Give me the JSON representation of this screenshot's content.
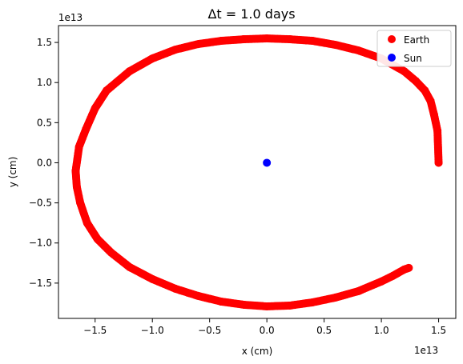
{
  "chart_data": {
    "type": "scatter",
    "title": "Δt = 1.0 days",
    "xlabel": "x (cm)",
    "ylabel": "y (cm)",
    "x_offset_label": "1e13",
    "y_offset_label": "1e13",
    "xlim": [
      -1.82,
      1.65
    ],
    "ylim": [
      -1.94,
      1.71
    ],
    "xticks": [
      -1.5,
      -1.0,
      -0.5,
      0.0,
      0.5,
      1.0,
      1.5
    ],
    "xtick_labels": [
      "−1.5",
      "−1.0",
      "−0.5",
      "0.0",
      "0.5",
      "1.0",
      "1.5"
    ],
    "yticks": [
      -1.5,
      -1.0,
      -0.5,
      0.0,
      0.5,
      1.0,
      1.5
    ],
    "ytick_labels": [
      "−1.5",
      "−1.0",
      "−0.5",
      "0.0",
      "0.5",
      "1.0",
      "1.5"
    ],
    "grid": false,
    "legend_position": "top-right",
    "series": [
      {
        "name": "Earth",
        "color": "#ff0000",
        "points": [
          [
            1.5,
            0.0
          ],
          [
            1.49,
            0.4
          ],
          [
            1.46,
            0.6
          ],
          [
            1.43,
            0.77
          ],
          [
            1.38,
            0.9
          ],
          [
            1.3,
            1.02
          ],
          [
            1.2,
            1.14
          ],
          [
            1.1,
            1.22
          ],
          [
            1.0,
            1.3
          ],
          [
            0.8,
            1.4
          ],
          [
            0.6,
            1.47
          ],
          [
            0.4,
            1.52
          ],
          [
            0.2,
            1.54
          ],
          [
            0.0,
            1.55
          ],
          [
            -0.2,
            1.54
          ],
          [
            -0.4,
            1.52
          ],
          [
            -0.6,
            1.48
          ],
          [
            -0.8,
            1.41
          ],
          [
            -1.0,
            1.3
          ],
          [
            -1.2,
            1.14
          ],
          [
            -1.4,
            0.9
          ],
          [
            -1.5,
            0.68
          ],
          [
            -1.58,
            0.42
          ],
          [
            -1.64,
            0.2
          ],
          [
            -1.67,
            -0.1
          ],
          [
            -1.66,
            -0.3
          ],
          [
            -1.63,
            -0.5
          ],
          [
            -1.57,
            -0.75
          ],
          [
            -1.48,
            -0.95
          ],
          [
            -1.36,
            -1.12
          ],
          [
            -1.2,
            -1.3
          ],
          [
            -1.0,
            -1.45
          ],
          [
            -0.8,
            -1.57
          ],
          [
            -0.6,
            -1.66
          ],
          [
            -0.4,
            -1.73
          ],
          [
            -0.2,
            -1.77
          ],
          [
            0.0,
            -1.79
          ],
          [
            0.2,
            -1.78
          ],
          [
            0.4,
            -1.74
          ],
          [
            0.6,
            -1.68
          ],
          [
            0.8,
            -1.6
          ],
          [
            1.0,
            -1.48
          ],
          [
            1.1,
            -1.41
          ],
          [
            1.2,
            -1.33
          ],
          [
            1.24,
            -1.31
          ]
        ]
      },
      {
        "name": "Sun",
        "color": "#0000ff",
        "points": [
          [
            0.0,
            0.0
          ]
        ]
      }
    ]
  }
}
